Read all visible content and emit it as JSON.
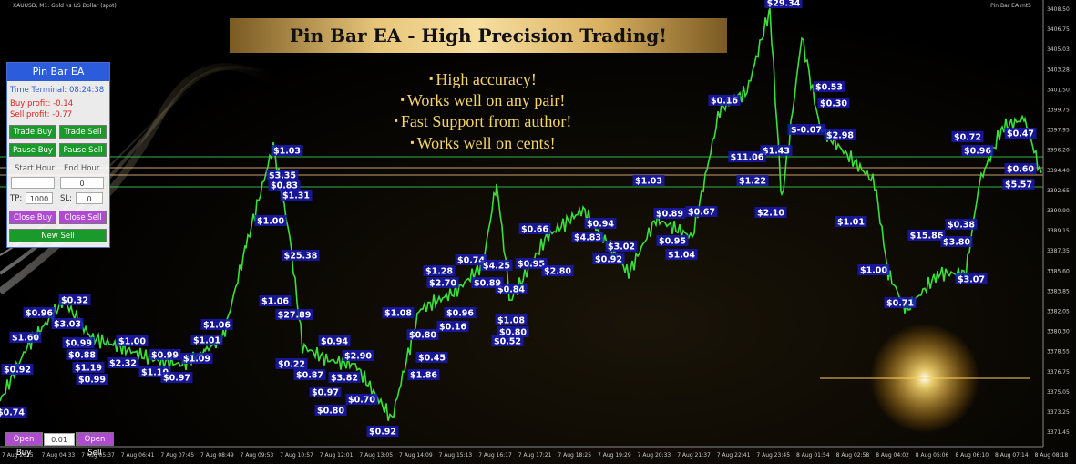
{
  "header": {
    "symbol": "XAUUSD, M1:  Gold vs US Dollar (spot)",
    "ea_name": "Pin Bar EA mt5"
  },
  "banner": {
    "title": "Pin Bar EA - High Precision Trading!"
  },
  "features": [
    "High accuracy!",
    "Works well on any pair!",
    "Fast Support from author!",
    "Works well on cents!"
  ],
  "panel": {
    "title": "Pin Bar EA",
    "time": "Time Terminal: 08:24:38",
    "buy_profit": "Buy profit: -0.14",
    "sell_profit": "Sell profit: -0.77",
    "buttons": [
      "Trade Buy",
      "Trade Sell",
      "Pause Buy",
      "Pause Sell"
    ],
    "start_hour": "Start Hour",
    "end_hour": "End Hour",
    "end_hour_value": "0",
    "tp_label": "TP:",
    "tp_value": "1000",
    "sl_label": "SL:",
    "sl_value": "0",
    "close_buy": "Close Buy",
    "close_sell": "Close Sell",
    "new_sell": "New Sell"
  },
  "order_bar": {
    "open_buy": "Open Buy",
    "lot": "0.01",
    "open_sell": "Open Sell"
  },
  "price_axis": [
    "3408.50",
    "3406.75",
    "3405.03",
    "3403.28",
    "3401.50",
    "3399.75",
    "3397.95",
    "3396.20",
    "3394.40",
    "3392.65",
    "3390.90",
    "3389.15",
    "3387.35",
    "3385.60",
    "3383.85",
    "3382.05",
    "3380.30",
    "3378.55",
    "3376.75",
    "3375.05",
    "3373.25",
    "3371.45"
  ],
  "time_axis": [
    "7 Aug 2025",
    "7 Aug 04:33",
    "7 Aug 05:37",
    "7 Aug 06:41",
    "7 Aug 07:45",
    "7 Aug 08:49",
    "7 Aug 09:53",
    "7 Aug 10:57",
    "7 Aug 12:01",
    "7 Aug 13:05",
    "7 Aug 14:09",
    "7 Aug 15:13",
    "7 Aug 16:17",
    "7 Aug 17:21",
    "7 Aug 18:25",
    "7 Aug 19:29",
    "7 Aug 20:33",
    "7 Aug 21:37",
    "7 Aug 22:41",
    "7 Aug 23:45",
    "8 Aug 01:54",
    "8 Aug 02:58",
    "8 Aug 04:02",
    "8 Aug 05:06",
    "8 Aug 06:10",
    "8 Aug 07:14",
    "8 Aug 08:18"
  ],
  "profit_labels": [
    "$29.34",
    "$0.16",
    "$0.53",
    "$0.30",
    "$2.98",
    "$-0.07",
    "$1.43",
    "$11.06",
    "$1.22",
    "$2.10",
    "$0.72",
    "$0.47",
    "$0.96",
    "$0.60",
    "$5.57",
    "$1.03",
    "$0.67",
    "$0.89",
    "$0.95",
    "$1.04",
    "$1.01",
    "$0.38",
    "$15.86",
    "$3.80",
    "$3.07",
    "$1.00",
    "$0.71",
    "$1.03",
    "$3.35",
    "$0.83",
    "$1.31",
    "$1.00",
    "$25.38",
    "$1.06",
    "$27.89",
    "$0.32",
    "$0.96",
    "$3.03",
    "$1.60",
    "$0.99",
    "$0.88",
    "$1.19",
    "$0.92",
    "$0.99",
    "$1.00",
    "$0.99",
    "$1.10",
    "$0.97",
    "$1.06",
    "$1.01",
    "$1.09",
    "$2.32",
    "$0.74",
    "$0.66",
    "$0.94",
    "$4.83",
    "$3.02",
    "$0.92",
    "$0.95",
    "$2.80",
    "$0.74",
    "$4.25",
    "$1.28",
    "$2.70",
    "$0.84",
    "$1.08",
    "$0.96",
    "$0.16",
    "$1.08",
    "$0.80",
    "$0.52",
    "$0.45",
    "$1.86",
    "$0.80",
    "$0.94",
    "$2.90",
    "$0.22",
    "$0.87",
    "$3.82",
    "$0.97",
    "$0.70",
    "$0.80",
    "$0.92",
    "$0.89"
  ]
}
